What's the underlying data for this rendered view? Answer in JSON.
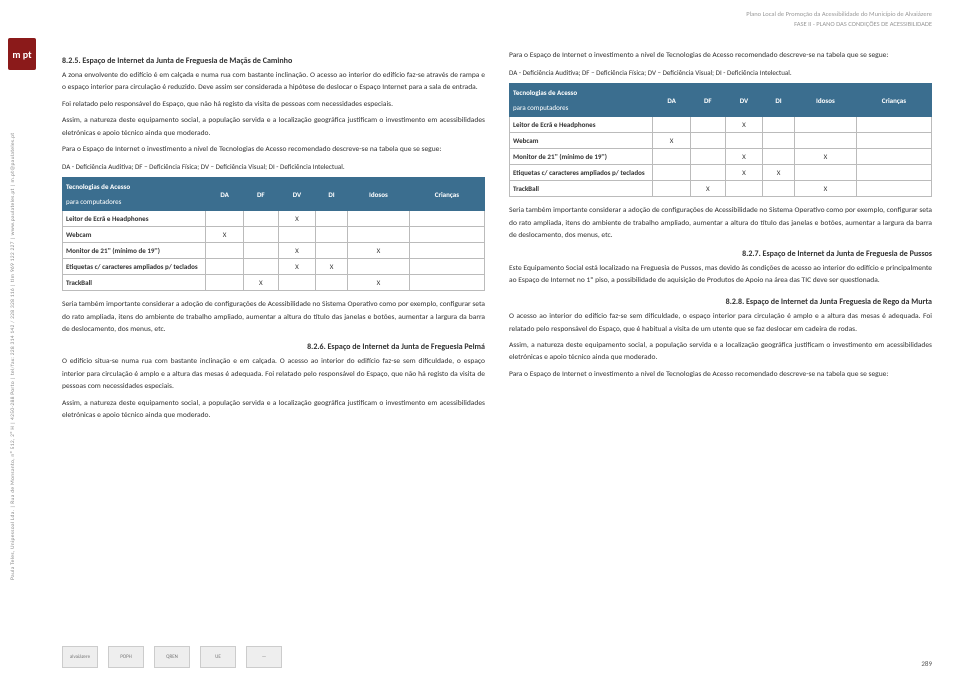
{
  "header": {
    "line1": "Plano Local de Promoção da Acessibilidade do Município de Alvaiázere",
    "line2": "FASE II - PLANO DAS CONDIÇÕES DE ACESSIBILIDADE"
  },
  "logo_left": "m pt",
  "sidebar": "Paula Teles, Unipessoal Lda. | Rua de Monsanto, nº 512, 2º H | 4250-288 Porto | tel/fax: 228 314 142 / 228 328 116 | tlm 969 122 227 | www.paulateles.pt | m.pt@paulateles.pt",
  "legend": "DA - Deficiência Auditiva; DF – Deficiência Física; DV – Deficiência Visual; DI - Deficiência Intelectual.",
  "left": {
    "t825": "8.2.5. Espaço de Internet da Junta de Freguesia de Maçãs de Caminho",
    "p825": "A zona envolvente do edifício é em calçada e numa rua com bastante inclinação. O acesso ao interior do edifício faz-se através de rampa e o espaço interior para circulação é reduzido. Deve assim ser considerada a hipótese de deslocar o Espaço Internet para a sala de entrada.",
    "p825b": "Foi relatado pelo responsável do Espaço, que não há registo da visita de pessoas com necessidades especiais.",
    "p825c": "Assim, a natureza deste equipamento social, a população servida e a localização geográfica justificam o investimento em acessibilidades eletrónicas e apoio técnico ainda que moderado.",
    "p825d": "Para o Espaço de Internet o investimento a nível de Tecnologias de Acesso recomendado descreve-se na tabela que se segue:",
    "p_os": "Seria também importante considerar a adoção de configurações de Acessibilidade no Sistema Operativo como por exemplo, configurar seta do rato ampliada, itens do ambiente de trabalho ampliado, aumentar a altura do título das janelas e botões, aumentar a largura da barra de deslocamento, dos menus, etc.",
    "t826": "8.2.6. Espaço de Internet da Junta de Freguesia Pelmá",
    "p826": "O edifício situa-se numa rua com bastante inclinação e em calçada. O acesso ao interior do edifício faz-se sem dificuldade, o espaço interior para circulação é amplo e a altura das mesas é adequada. Foi relatado pelo responsável do Espaço, que não há registo da visita de pessoas com necessidades especiais.",
    "p826b": "Assim, a natureza deste equipamento social, a população servida e a localização geográfica justificam o investimento em acessibilidades eletrónicas e apoio técnico ainda que moderado."
  },
  "right": {
    "intro": "Para o Espaço de Internet o investimento a nível de Tecnologias de Acesso recomendado descreve-se na tabela que se segue:",
    "p_os": "Seria também importante considerar a adoção de configurações de Acessibilidade no Sistema Operativo como por exemplo, configurar seta do rato ampliada, itens do ambiente de trabalho ampliado, aumentar a altura do título das janelas e botões, aumentar a largura da barra de deslocamento, dos menus, etc.",
    "t827": "8.2.7. Espaço de Internet da Junta de Freguesia de Pussos",
    "p827": "Este Equipamento Social está localizado na Freguesia de Pussos, mas devido às condições de acesso ao interior do edifício e principalmente ao Espaço de Internet no 1º piso, a possibilidade de aquisição de Produtos de Apoio na área das TIC deve ser questionada.",
    "t828": "8.2.8. Espaço de Internet da Junta Freguesia de Rego da Murta",
    "p828": "O acesso ao interior do edifício faz-se sem dificuldade, o espaço interior para circulação é amplo e a altura das mesas é adequada. Foi relatado pelo responsável do Espaço, que é habitual a visita de um utente que se faz deslocar em cadeira de rodas.",
    "p828b": "Assim, a natureza deste equipamento social, a população servida e a localização geográfica justificam o investimento em acessibilidades eletrónicas e apoio técnico ainda que moderado.",
    "p828c": "Para o Espaço de Internet o investimento a nível de Tecnologias de Acesso recomendado descreve-se na tabela que se segue:"
  },
  "table": {
    "head_main": "Tecnologias de Acesso",
    "head_sub": "para computadores",
    "cols": [
      "DA",
      "DF",
      "DV",
      "DI",
      "Idosos",
      "Crianças"
    ],
    "rows": [
      {
        "label": "Leitor de Ecrã e Headphones",
        "marks": [
          "",
          "",
          "X",
          "",
          "",
          ""
        ]
      },
      {
        "label": "Webcam",
        "marks": [
          "X",
          "",
          "",
          "",
          "",
          ""
        ]
      },
      {
        "label": "Monitor de 21'' (mínimo de 19'')",
        "marks": [
          "",
          "",
          "X",
          "",
          "X",
          ""
        ]
      },
      {
        "label": "Etiquetas c/ caracteres ampliados p/ teclados",
        "marks": [
          "",
          "",
          "X",
          "X",
          "",
          ""
        ]
      },
      {
        "label": "TrackBall",
        "marks": [
          "",
          "X",
          "",
          "",
          "X",
          ""
        ]
      }
    ]
  },
  "footer_logos": [
    "alvaiázere",
    "POPH",
    "QREN",
    "UE",
    "—"
  ],
  "page": "289"
}
